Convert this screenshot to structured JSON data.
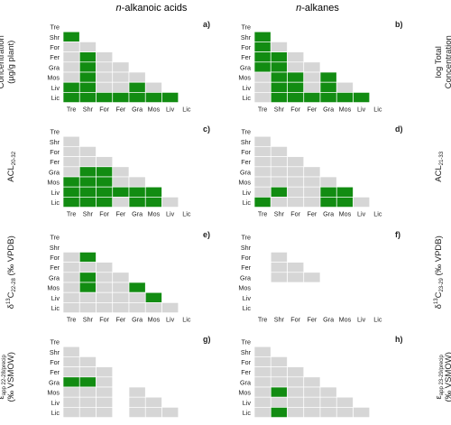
{
  "col_titles": [
    {
      "prefix": "n",
      "rest": "-alkanoic acids"
    },
    {
      "prefix": "n",
      "rest": "-alkanes"
    }
  ],
  "colors": {
    "significant": "#128c12",
    "non_significant": "#d6d6d6",
    "text": "#222222"
  },
  "row_labels": [
    {
      "lines": [
        "log Total",
        "Concentration",
        "(µg/g plant)"
      ]
    },
    {
      "base": "ACL",
      "sub_left": "20-32",
      "sub_right": "21-33"
    },
    {
      "base": "δ",
      "sup": "13",
      "after": "C",
      "sub_left": "22-28",
      "sub_right": "23-29",
      "unit": " (‰ VPDB)"
    },
    {
      "base": "ε",
      "sub_left": "app 22-28/precip",
      "sub_right": "app 23-29/precip",
      "unit": "(‰ VSMOW)"
    }
  ],
  "chart_data": {
    "type": "heatmap",
    "x_categories": [
      "Tre",
      "Shr",
      "For",
      "Fer",
      "Gra",
      "Mos",
      "Liv",
      "Lic"
    ],
    "y_categories": [
      "Tre",
      "Shr",
      "For",
      "Fer",
      "Gra",
      "Mos",
      "Liv",
      "Lic"
    ],
    "cell_codes": {
      "0": "blank",
      "1": "grey (not significant)",
      "2": "green (significant)"
    },
    "panels": [
      {
        "label": "a)",
        "matrix": [
          [
            0,
            0,
            0,
            0,
            0,
            0,
            0,
            0
          ],
          [
            2,
            0,
            0,
            0,
            0,
            0,
            0,
            0
          ],
          [
            1,
            1,
            0,
            0,
            0,
            0,
            0,
            0
          ],
          [
            1,
            2,
            1,
            0,
            0,
            0,
            0,
            0
          ],
          [
            1,
            2,
            1,
            1,
            0,
            0,
            0,
            0
          ],
          [
            1,
            2,
            1,
            1,
            1,
            0,
            0,
            0
          ],
          [
            2,
            2,
            1,
            1,
            2,
            1,
            0,
            0
          ],
          [
            2,
            2,
            2,
            2,
            2,
            2,
            2,
            0
          ]
        ]
      },
      {
        "label": "b)",
        "matrix": [
          [
            0,
            0,
            0,
            0,
            0,
            0,
            0,
            0
          ],
          [
            2,
            0,
            0,
            0,
            0,
            0,
            0,
            0
          ],
          [
            2,
            1,
            0,
            0,
            0,
            0,
            0,
            0
          ],
          [
            2,
            2,
            1,
            0,
            0,
            0,
            0,
            0
          ],
          [
            2,
            2,
            1,
            1,
            0,
            0,
            0,
            0
          ],
          [
            1,
            2,
            2,
            1,
            2,
            0,
            0,
            0
          ],
          [
            1,
            2,
            2,
            1,
            2,
            1,
            0,
            0
          ],
          [
            1,
            2,
            2,
            2,
            2,
            2,
            2,
            0
          ]
        ]
      },
      {
        "label": "c)",
        "matrix": [
          [
            0,
            0,
            0,
            0,
            0,
            0,
            0,
            0
          ],
          [
            1,
            0,
            0,
            0,
            0,
            0,
            0,
            0
          ],
          [
            1,
            1,
            0,
            0,
            0,
            0,
            0,
            0
          ],
          [
            1,
            1,
            1,
            0,
            0,
            0,
            0,
            0
          ],
          [
            1,
            2,
            2,
            1,
            0,
            0,
            0,
            0
          ],
          [
            2,
            2,
            2,
            1,
            1,
            0,
            0,
            0
          ],
          [
            2,
            2,
            2,
            2,
            2,
            2,
            0,
            0
          ],
          [
            2,
            2,
            2,
            1,
            2,
            2,
            1,
            0
          ]
        ]
      },
      {
        "label": "d)",
        "matrix": [
          [
            0,
            0,
            0,
            0,
            0,
            0,
            0,
            0
          ],
          [
            1,
            0,
            0,
            0,
            0,
            0,
            0,
            0
          ],
          [
            1,
            1,
            0,
            0,
            0,
            0,
            0,
            0
          ],
          [
            1,
            1,
            1,
            0,
            0,
            0,
            0,
            0
          ],
          [
            1,
            1,
            1,
            1,
            0,
            0,
            0,
            0
          ],
          [
            1,
            1,
            1,
            1,
            1,
            0,
            0,
            0
          ],
          [
            1,
            2,
            1,
            1,
            2,
            2,
            0,
            0
          ],
          [
            2,
            1,
            1,
            1,
            2,
            2,
            1,
            0
          ]
        ]
      },
      {
        "label": "e)",
        "matrix": [
          [
            0,
            0,
            0,
            0,
            0,
            0,
            0,
            0
          ],
          [
            0,
            0,
            0,
            0,
            0,
            0,
            0,
            0
          ],
          [
            1,
            2,
            0,
            0,
            0,
            0,
            0,
            0
          ],
          [
            1,
            1,
            1,
            0,
            0,
            0,
            0,
            0
          ],
          [
            1,
            2,
            1,
            1,
            0,
            0,
            0,
            0
          ],
          [
            1,
            2,
            1,
            1,
            2,
            0,
            0,
            0
          ],
          [
            1,
            1,
            1,
            1,
            1,
            2,
            0,
            0
          ],
          [
            1,
            1,
            1,
            1,
            1,
            1,
            1,
            0
          ]
        ]
      },
      {
        "label": "f)",
        "matrix": [
          [
            0,
            0,
            0,
            0,
            0,
            0,
            0,
            0
          ],
          [
            0,
            0,
            0,
            0,
            0,
            0,
            0,
            0
          ],
          [
            0,
            1,
            0,
            0,
            0,
            0,
            0,
            0
          ],
          [
            0,
            1,
            1,
            0,
            0,
            0,
            0,
            0
          ],
          [
            0,
            1,
            1,
            1,
            0,
            0,
            0,
            0
          ],
          [
            0,
            0,
            0,
            0,
            0,
            0,
            0,
            0
          ],
          [
            0,
            0,
            0,
            0,
            0,
            0,
            0,
            0
          ],
          [
            0,
            0,
            0,
            0,
            0,
            0,
            0,
            0
          ]
        ]
      },
      {
        "label": "g)",
        "matrix": [
          [
            0,
            0,
            0,
            0,
            0,
            0,
            0,
            0
          ],
          [
            1,
            0,
            0,
            0,
            0,
            0,
            0,
            0
          ],
          [
            1,
            1,
            0,
            0,
            0,
            0,
            0,
            0
          ],
          [
            1,
            1,
            1,
            0,
            0,
            0,
            0,
            0
          ],
          [
            2,
            2,
            1,
            0,
            0,
            0,
            0,
            0
          ],
          [
            1,
            1,
            1,
            0,
            1,
            0,
            0,
            0
          ],
          [
            1,
            1,
            1,
            0,
            1,
            1,
            0,
            0
          ],
          [
            1,
            1,
            1,
            0,
            1,
            1,
            1,
            0
          ]
        ]
      },
      {
        "label": "h)",
        "matrix": [
          [
            0,
            0,
            0,
            0,
            0,
            0,
            0,
            0
          ],
          [
            1,
            0,
            0,
            0,
            0,
            0,
            0,
            0
          ],
          [
            1,
            1,
            0,
            0,
            0,
            0,
            0,
            0
          ],
          [
            1,
            1,
            1,
            0,
            0,
            0,
            0,
            0
          ],
          [
            1,
            1,
            1,
            1,
            0,
            0,
            0,
            0
          ],
          [
            1,
            2,
            1,
            1,
            1,
            0,
            0,
            0
          ],
          [
            1,
            1,
            1,
            1,
            1,
            1,
            0,
            0
          ],
          [
            1,
            2,
            1,
            1,
            1,
            1,
            1,
            0
          ]
        ]
      }
    ]
  }
}
